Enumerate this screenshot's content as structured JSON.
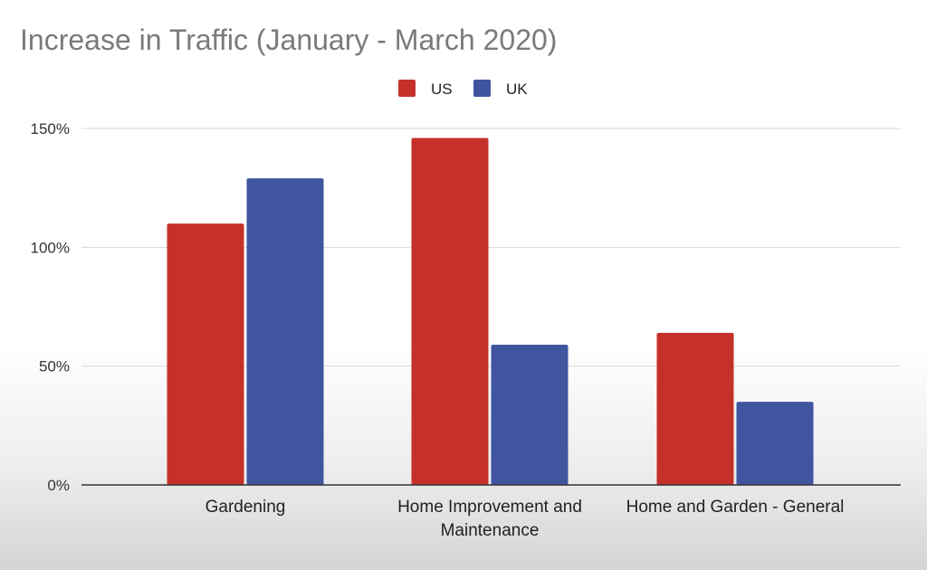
{
  "chart_data": {
    "type": "bar",
    "title": "Increase in Traffic (January - March 2020)",
    "categories": [
      [
        "Gardening"
      ],
      [
        "Home Improvement and",
        "Maintenance"
      ],
      [
        "Home and Garden - General"
      ]
    ],
    "series": [
      {
        "name": "US",
        "color": "#c53129",
        "values": [
          110,
          146,
          64
        ]
      },
      {
        "name": "UK",
        "color": "#3f55a0",
        "values": [
          129,
          59,
          35
        ]
      }
    ],
    "yticks": [
      "0%",
      "50%",
      "100%",
      "150%"
    ],
    "ytick_values": [
      0,
      50,
      100,
      150
    ],
    "ylim": [
      0,
      150
    ],
    "y_unit": "%",
    "grid": true,
    "legend_position": "top-center",
    "gridline_color": "#d9d9d9",
    "axis_color": "#333333"
  }
}
